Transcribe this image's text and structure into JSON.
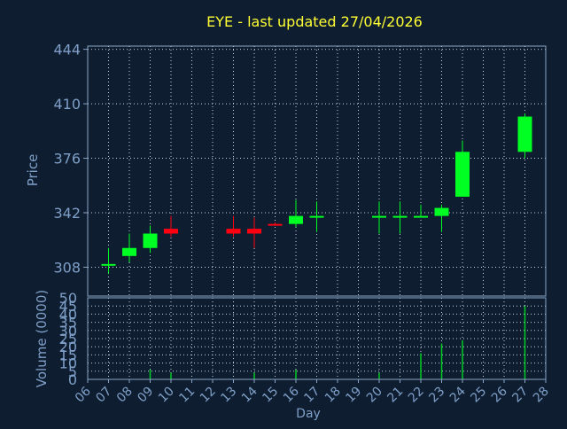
{
  "colors": {
    "background": "#0e1e30",
    "plot_background": "#0e1e30",
    "frame": "#8aa4c4",
    "grid": "#c8d4e4",
    "title": "#ffff33",
    "axis_text": "#7f9fc8",
    "up": "#00ff22",
    "down": "#ff0011",
    "volume": "#00cc22"
  },
  "chart_data": {
    "type": "candlestick",
    "title": "EYE - last updated 27/04/2026",
    "xlabel": "Day",
    "price_ylabel": "Price",
    "volume_ylabel": "Volume (0000)",
    "x_ticks": [
      "06",
      "07",
      "08",
      "09",
      "10",
      "11",
      "12",
      "13",
      "14",
      "15",
      "16",
      "17",
      "18",
      "19",
      "20",
      "21",
      "22",
      "23",
      "24",
      "25",
      "26",
      "27",
      "28"
    ],
    "price_ylim": [
      290,
      446
    ],
    "price_ticks": [
      308,
      342,
      376,
      410,
      444
    ],
    "volume_ylim": [
      0,
      50
    ],
    "volume_ticks": [
      0,
      5,
      10,
      15,
      20,
      25,
      30,
      35,
      40,
      45,
      50
    ],
    "grid": true,
    "candles": [
      {
        "day": 7,
        "open": 309,
        "high": 320,
        "low": 304,
        "close": 310
      },
      {
        "day": 8,
        "open": 315,
        "high": 329,
        "low": 311,
        "close": 320
      },
      {
        "day": 9,
        "open": 320,
        "high": 334,
        "low": 317,
        "close": 329
      },
      {
        "day": 10,
        "open": 332,
        "high": 340,
        "low": 327,
        "close": 329
      },
      {
        "day": 13,
        "open": 332,
        "high": 340,
        "low": 327,
        "close": 329
      },
      {
        "day": 14,
        "open": 332,
        "high": 339,
        "low": 320,
        "close": 329
      },
      {
        "day": 15,
        "open": 335,
        "high": 336,
        "low": 334,
        "close": 334
      },
      {
        "day": 16,
        "open": 335,
        "high": 350,
        "low": 333,
        "close": 340
      },
      {
        "day": 17,
        "open": 339,
        "high": 349,
        "low": 330,
        "close": 340
      },
      {
        "day": 20,
        "open": 339,
        "high": 349,
        "low": 329,
        "close": 340
      },
      {
        "day": 21,
        "open": 339,
        "high": 349,
        "low": 329,
        "close": 340
      },
      {
        "day": 22,
        "open": 339,
        "high": 347,
        "low": 339,
        "close": 340
      },
      {
        "day": 23,
        "open": 340,
        "high": 347,
        "low": 330,
        "close": 345
      },
      {
        "day": 24,
        "open": 352,
        "high": 387,
        "low": 352,
        "close": 380
      },
      {
        "day": 27,
        "open": 380,
        "high": 404,
        "low": 376,
        "close": 402
      }
    ],
    "volume": [
      {
        "day": 9,
        "value": 6
      },
      {
        "day": 10,
        "value": 4
      },
      {
        "day": 14,
        "value": 4
      },
      {
        "day": 16,
        "value": 6
      },
      {
        "day": 20,
        "value": 4
      },
      {
        "day": 22,
        "value": 16
      },
      {
        "day": 23,
        "value": 22
      },
      {
        "day": 24,
        "value": 24
      },
      {
        "day": 27,
        "value": 45
      }
    ]
  }
}
